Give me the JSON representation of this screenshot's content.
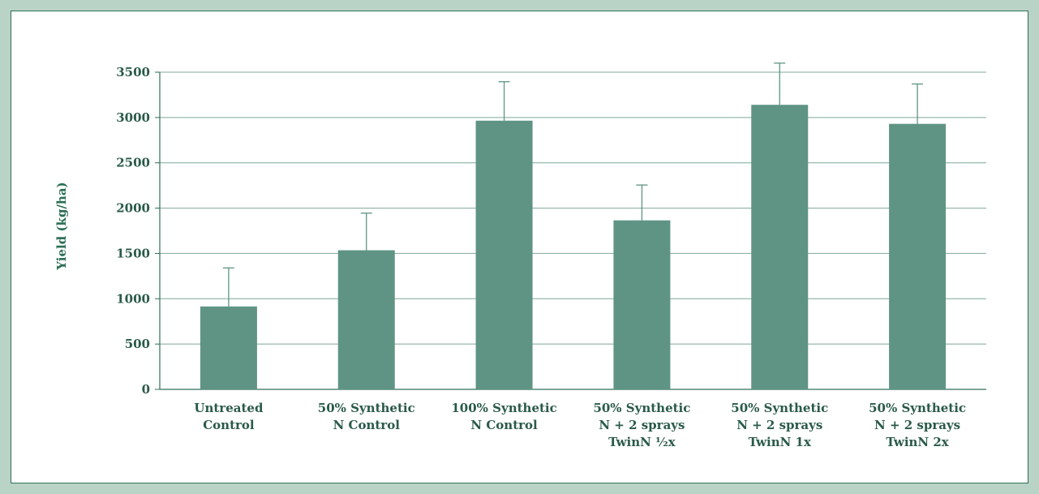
{
  "chart_data": {
    "type": "bar",
    "title": "",
    "xlabel": "",
    "ylabel": "Yield (kg/ha)",
    "ylim": [
      0,
      3500
    ],
    "yticks": [
      0,
      500,
      1000,
      1500,
      2000,
      2500,
      3000,
      3500
    ],
    "grid": true,
    "categories": [
      [
        "Untreated",
        "Control"
      ],
      [
        "50% Synthetic",
        "N Control"
      ],
      [
        "100% Synthetic",
        "N Control"
      ],
      [
        "50% Synthetic",
        "N + 2 sprays",
        "TwinN ½x"
      ],
      [
        "50% Synthetic",
        "N + 2 sprays",
        "TwinN 1x"
      ],
      [
        "50% Synthetic",
        "N + 2 sprays",
        "TwinN 2x"
      ]
    ],
    "values": [
      915,
      1535,
      2965,
      1865,
      3140,
      2930
    ],
    "error_upper": [
      1340,
      1945,
      3395,
      2255,
      3600,
      3370
    ],
    "colors": {
      "bar": "#5f9484",
      "error": "#5f9484",
      "grid": "#7fa898",
      "axis": "#2f6f58",
      "background": "#b9d3c6",
      "plot_bg": "#ffffff"
    }
  }
}
